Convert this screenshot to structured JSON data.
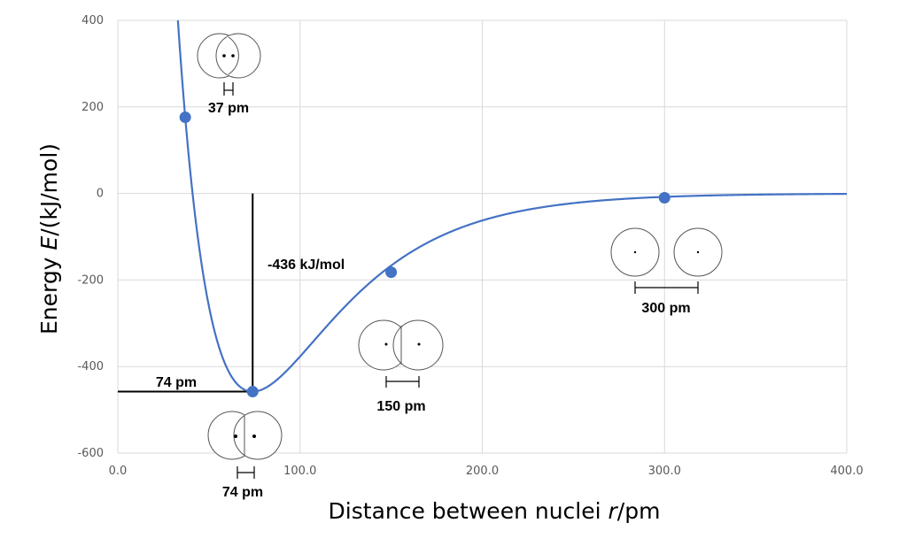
{
  "chart_data": {
    "type": "line",
    "xlabel": "Distance between nuclei ",
    "xlabel_italic": "r",
    "xlabel_unit": "/pm",
    "ylabel": "Energy ",
    "ylabel_italic": "E",
    "ylabel_unit": "/(kJ/mol)",
    "xlim": [
      0,
      400
    ],
    "ylim": [
      -600,
      400
    ],
    "x_ticks": [
      0,
      100,
      200,
      300,
      400
    ],
    "x_tick_labels": [
      "0.0",
      "100.0",
      "200.0",
      "300.0",
      "400.0"
    ],
    "y_ticks": [
      -600,
      -400,
      -200,
      0,
      200,
      400
    ],
    "y_tick_labels": [
      "-600",
      "-400",
      "-200",
      "0",
      "200",
      "400"
    ],
    "grid": true,
    "series": [
      {
        "curve": "Morse potential",
        "well_depth": 458,
        "equilibrium_r": 74,
        "color": "#4472c4"
      }
    ],
    "points": [
      {
        "x": 37,
        "y": 176
      },
      {
        "x": 74,
        "y": -458
      },
      {
        "x": 150,
        "y": -182
      },
      {
        "x": 300,
        "y": -10
      }
    ],
    "annotations": {
      "bond_energy": "-436 kJ/mol",
      "eq_distance": "74 pm",
      "molecules": [
        {
          "x": 37,
          "label": "37 pm"
        },
        {
          "x": 74,
          "label": "74 pm"
        },
        {
          "x": 150,
          "label": "150 pm"
        },
        {
          "x": 300,
          "label": "300 pm"
        }
      ]
    }
  }
}
